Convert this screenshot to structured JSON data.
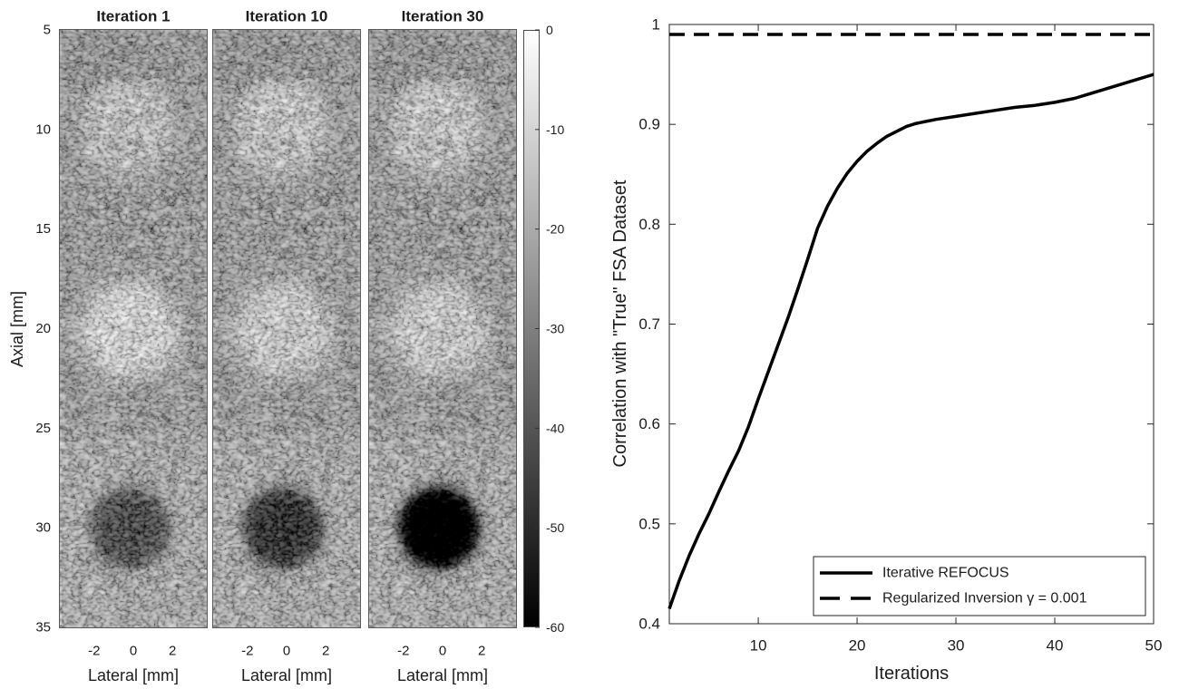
{
  "chart_data": [
    {
      "type": "heatmap",
      "panels": [
        {
          "title": "Iteration 1"
        },
        {
          "title": "Iteration 10"
        },
        {
          "title": "Iteration 30"
        }
      ],
      "xlabel": "Lateral [mm]",
      "ylabel": "Axial [mm]",
      "xlim": [
        -3.75,
        3.75
      ],
      "ylim": [
        5,
        35
      ],
      "y_reversed": true,
      "xticks": [
        -2,
        0,
        2
      ],
      "yticks": [
        5,
        10,
        15,
        20,
        25,
        30,
        35
      ],
      "colormap": "gray",
      "colorbar": {
        "position": "right",
        "clim": [
          -60,
          0
        ],
        "ticks": [
          0,
          -10,
          -20,
          -30,
          -40,
          -50,
          -60
        ]
      }
    },
    {
      "type": "line",
      "xlabel": "Iterations",
      "ylabel": "Correlation with \"True\" FSA Dataset",
      "xlim": [
        1,
        50
      ],
      "ylim": [
        0.4,
        1
      ],
      "xticks": [
        10,
        20,
        30,
        40,
        50
      ],
      "yticks": [
        0.4,
        0.5,
        0.6,
        0.7,
        0.8,
        0.9,
        1
      ],
      "grid": false,
      "legend": "bottom-right",
      "series": [
        {
          "name": "Iterative REFOCUS",
          "color": "#000000",
          "style": "solid",
          "x": [
            1,
            2,
            3,
            4,
            5,
            6,
            7,
            8,
            9,
            10,
            11,
            12,
            13,
            14,
            15,
            16,
            17,
            18,
            19,
            20,
            21,
            22,
            23,
            24,
            25,
            26,
            28,
            30,
            32,
            34,
            36,
            38,
            40,
            42,
            44,
            46,
            48,
            50
          ],
          "y": [
            0.415,
            0.443,
            0.468,
            0.49,
            0.51,
            0.532,
            0.553,
            0.573,
            0.597,
            0.625,
            0.652,
            0.679,
            0.706,
            0.735,
            0.765,
            0.796,
            0.818,
            0.836,
            0.851,
            0.863,
            0.873,
            0.881,
            0.888,
            0.893,
            0.898,
            0.901,
            0.905,
            0.908,
            0.911,
            0.914,
            0.917,
            0.919,
            0.922,
            0.926,
            0.932,
            0.938,
            0.944,
            0.95
          ]
        },
        {
          "name": "Regularized Inversion γ = 0.001",
          "color": "#000000",
          "style": "dashed",
          "x": [
            1,
            50
          ],
          "y": [
            0.99,
            0.99
          ]
        }
      ]
    }
  ]
}
